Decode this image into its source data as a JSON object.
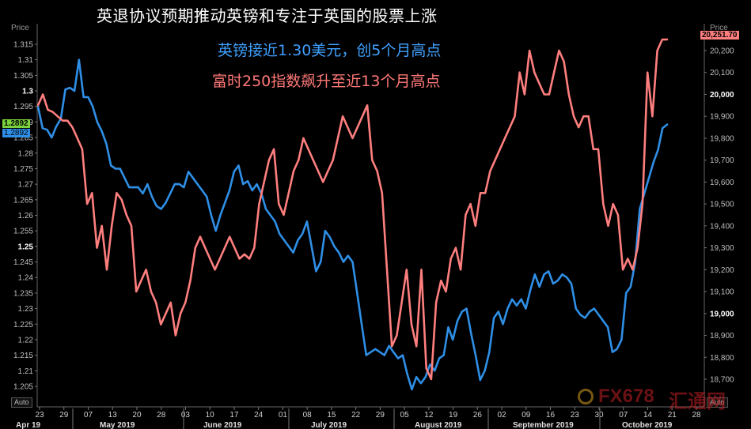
{
  "title": "英退协议预期推动英镑和专注于英国的股票上涨",
  "annotations": {
    "gbp": "英镑接近1.30美元，创5个月高点",
    "ftse": "富时250指数飙升至近13个月高点"
  },
  "left_axis": {
    "title": "Price",
    "current_label_green": "1.2892",
    "current_label_blue": "1.2892",
    "auto_label": "Auto"
  },
  "right_axis": {
    "title": "Price",
    "current_label": "20,251.70",
    "auto_label": "Auto"
  },
  "watermark": {
    "text": "FX678",
    "text2": "汇通网"
  },
  "colors": {
    "gbp": "#2f8fe6",
    "ftse": "#ff7f7f",
    "background": "#000000",
    "current_green": "#7bd23c"
  },
  "chart_data": {
    "type": "line",
    "title": "英退协议预期推动英镑和专注于英国的股票上涨",
    "x_tick_labels": [
      "23",
      "29",
      "07",
      "13",
      "20",
      "28",
      "03",
      "10",
      "17",
      "24",
      "01",
      "08",
      "15",
      "22",
      "29",
      "05",
      "12",
      "19",
      "26",
      "02",
      "09",
      "16",
      "23",
      "30",
      "07",
      "14",
      "21",
      "28"
    ],
    "month_labels": [
      "Apr 19",
      "May 2019",
      "June 2019",
      "July 2019",
      "August 2019",
      "September 2019",
      "October 2019"
    ],
    "left_ticks": [
      "1.315",
      "1.31",
      "1.305",
      "1.3",
      "1.295",
      "1.29",
      "1.285",
      "1.28",
      "1.275",
      "1.27",
      "1.265",
      "1.26",
      "1.255",
      "1.25",
      "1.245",
      "1.24",
      "1.235",
      "1.23",
      "1.225",
      "1.22",
      "1.215",
      "1.21",
      "1.205"
    ],
    "left_major": [
      "1.3",
      "1.25"
    ],
    "right_ticks": [
      "20,200",
      "20,100",
      "20,000",
      "19,900",
      "19,800",
      "19,700",
      "19,600",
      "19,500",
      "19,400",
      "19,300",
      "19,200",
      "19,100",
      "19,000",
      "18,900",
      "18,800",
      "18,700"
    ],
    "right_major": [
      "20,000",
      "19,000"
    ],
    "left_range": [
      1.2,
      1.32
    ],
    "right_range": [
      18,
      650,
      20,
      300
    ],
    "series": [
      {
        "axis": "left",
        "values": [
          1.295,
          1.288,
          1.2875,
          1.285,
          1.2885,
          1.291,
          1.3005,
          1.301,
          1.3,
          1.31,
          1.298,
          1.298,
          1.295,
          1.29,
          1.287,
          1.283,
          1.276,
          1.275,
          1.275,
          1.272,
          1.269,
          1.269,
          1.269,
          1.267,
          1.27,
          1.266,
          1.263,
          1.262,
          1.264,
          1.267,
          1.27,
          1.27,
          1.269,
          1.274,
          1.272,
          1.27,
          1.268,
          1.266,
          1.26,
          1.255,
          1.26,
          1.264,
          1.268,
          1.274,
          1.276,
          1.27,
          1.271,
          1.268,
          1.27,
          1.267,
          1.262,
          1.26,
          1.258,
          1.254,
          1.252,
          1.25,
          1.248,
          1.252,
          1.254,
          1.258,
          1.25,
          1.242,
          1.245,
          1.255,
          1.253,
          1.25,
          1.248,
          1.245,
          1.247,
          1.245,
          1.235,
          1.225,
          1.215,
          1.216,
          1.217,
          1.216,
          1.215,
          1.218,
          1.216,
          1.214,
          1.215,
          1.209,
          1.204,
          1.208,
          1.206,
          1.208,
          1.212,
          1.21,
          1.214,
          1.215,
          1.224,
          1.22,
          1.226,
          1.229,
          1.23,
          1.222,
          1.215,
          1.207,
          1.21,
          1.216,
          1.227,
          1.229,
          1.225,
          1.23,
          1.233,
          1.231,
          1.233,
          1.23,
          1.236,
          1.241,
          1.237,
          1.241,
          1.242,
          1.238,
          1.239,
          1.241,
          1.24,
          1.238,
          1.23,
          1.228,
          1.227,
          1.229,
          1.23,
          1.228,
          1.226,
          1.224,
          1.216,
          1.217,
          1.22,
          1.235,
          1.237,
          1.245,
          1.262,
          1.267,
          1.272,
          1.277,
          1.281,
          1.288,
          1.2892
        ]
      },
      {
        "axis": "right",
        "values": [
          19950,
          20000,
          19930,
          19920,
          19900,
          19880,
          19880,
          19850,
          19800,
          19750,
          19500,
          19550,
          19300,
          19400,
          19200,
          19400,
          19550,
          19520,
          19450,
          19400,
          19100,
          19150,
          19200,
          19100,
          19050,
          18950,
          19000,
          19050,
          18900,
          19000,
          19050,
          19150,
          19300,
          19350,
          19300,
          19250,
          19200,
          19250,
          19300,
          19350,
          19300,
          19250,
          19270,
          19250,
          19300,
          19500,
          19600,
          19700,
          19750,
          19500,
          19450,
          19550,
          19650,
          19700,
          19800,
          19750,
          19700,
          19650,
          19600,
          19650,
          19700,
          19800,
          19900,
          19850,
          19800,
          19850,
          19900,
          19950,
          19700,
          19650,
          19550,
          19200,
          18850,
          18900,
          19050,
          19200,
          18950,
          18850,
          19200,
          18750,
          18700,
          19050,
          19150,
          19100,
          19250,
          19300,
          19200,
          19450,
          19500,
          19400,
          19550,
          19550,
          19650,
          19700,
          19750,
          19800,
          19850,
          19900,
          20100,
          20000,
          20200,
          20100,
          20050,
          20000,
          20000,
          20100,
          20200,
          20150,
          20000,
          19900,
          19850,
          19900,
          19900,
          19750,
          19750,
          19500,
          19400,
          19500,
          19450,
          19200,
          19250,
          19200,
          19300,
          19500,
          20100,
          19900,
          20200,
          20250,
          20251
        ]
      }
    ]
  }
}
